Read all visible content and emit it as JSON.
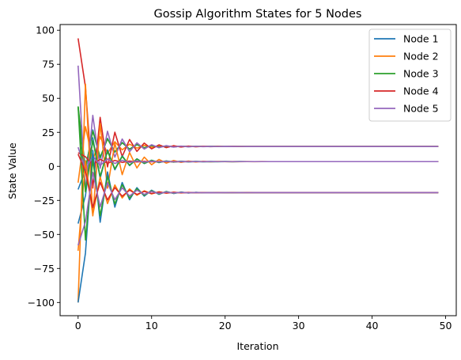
{
  "chart_data": {
    "type": "line",
    "title": "Gossip Algorithm States for 5 Nodes",
    "xlabel": "Iteration",
    "ylabel": "State Value",
    "xlim": [
      -2.45,
      51.45
    ],
    "ylim": [
      -109.7,
      104.2
    ],
    "xticks": [
      0,
      10,
      20,
      30,
      40,
      50
    ],
    "yticks": [
      -100,
      -75,
      -50,
      -25,
      0,
      25,
      50,
      75,
      100
    ],
    "ytick_labels": [
      "−100",
      "−75",
      "−50",
      "−25",
      "0",
      "25",
      "50",
      "75",
      "100"
    ],
    "legend": {
      "position": "top-right"
    },
    "groups": [
      {
        "final": 14.6,
        "initial": [
          -17.0,
          -12.0,
          44.0,
          94.0,
          74.0
        ]
      },
      {
        "final": 3.5,
        "initial": [
          -42.0,
          -100.0,
          44.0,
          10.0,
          14.0
        ]
      },
      {
        "final": -19.3,
        "initial": [
          -100.0,
          -62.0,
          44.0,
          9.0,
          -58.0
        ]
      }
    ],
    "series": [
      {
        "name": "Node 1",
        "color": "#1f77b4"
      },
      {
        "name": "Node 2",
        "color": "#ff7f0e"
      },
      {
        "name": "Node 3",
        "color": "#2ca02c"
      },
      {
        "name": "Node 4",
        "color": "#d62728"
      },
      {
        "name": "Node 5",
        "color": "#9467bd"
      }
    ],
    "n_iterations": 50
  }
}
